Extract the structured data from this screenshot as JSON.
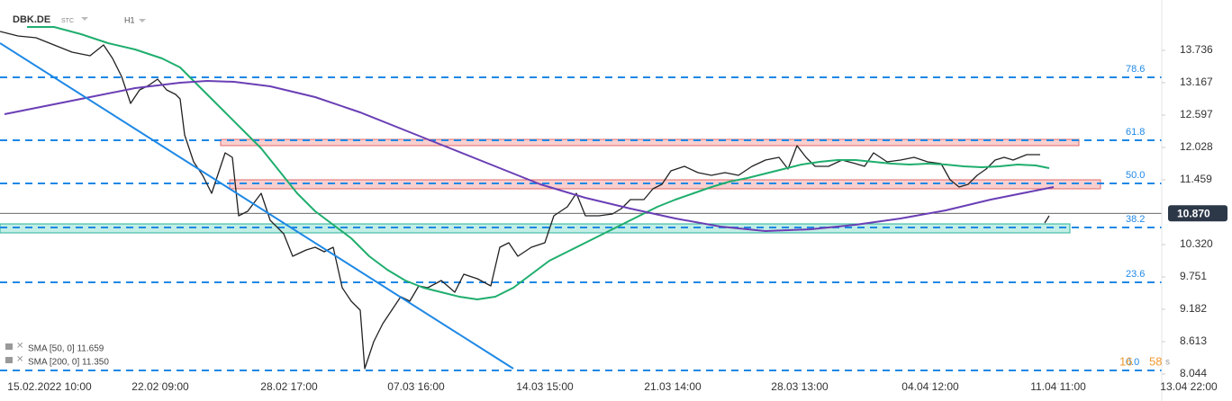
{
  "header": {
    "symbol": "DBK.DE",
    "market": "STC",
    "interval": "H1"
  },
  "legend_items": [
    {
      "label": "SMA [50, 0] 11.659"
    },
    {
      "label": "SMA [200, 0] 11.350"
    }
  ],
  "timer": {
    "minutes": "16",
    "seconds": "58",
    "unit": "s"
  },
  "chart_data": {
    "type": "line",
    "ylim": [
      7.854,
      14.621
    ],
    "yticks": [
      13.736,
      13.167,
      12.597,
      12.028,
      11.459,
      {
        "value": 10.32,
        "label": "10.320"
      },
      9.751,
      9.182,
      8.613,
      8.044
    ],
    "xlim": [
      0,
      273.6
    ],
    "xticks": [
      {
        "value": 11,
        "label": "15.02.2022 10:00"
      },
      {
        "value": 35.6,
        "label": "22.02 09:00"
      },
      {
        "value": 64.2,
        "label": "28.02 17:00"
      },
      {
        "value": 92.4,
        "label": "07.03 16:00"
      },
      {
        "value": 121,
        "label": "14.03 15:00"
      },
      {
        "value": 149.4,
        "label": "21.03 14:00"
      },
      {
        "value": 177.6,
        "label": "28.03 13:00"
      },
      {
        "value": 206.6,
        "label": "04.04 12:00"
      },
      {
        "value": 235,
        "label": "11.04 11:00"
      },
      {
        "value": 264,
        "label": "13.04 22:00"
      }
    ],
    "current_price": {
      "value": 10.87,
      "label": "10.870"
    },
    "series": [
      {
        "color": "#222222",
        "x": [
          0,
          4,
          8,
          12,
          16,
          20,
          23,
          25,
          27,
          29,
          31,
          33,
          35,
          37,
          39,
          40,
          41,
          43,
          45,
          47,
          49,
          50,
          51.6,
          53,
          55,
          58,
          60,
          63,
          65,
          68,
          70,
          72,
          74,
          76,
          78,
          80,
          81,
          83,
          85,
          87,
          89,
          91,
          93,
          95,
          98,
          101,
          103,
          106,
          109,
          111,
          113,
          115,
          118,
          121,
          123,
          126,
          128,
          130,
          133,
          136,
          138,
          140,
          143,
          145,
          147,
          149,
          152,
          155,
          158,
          161,
          164,
          167,
          170,
          173,
          175,
          177,
          179,
          181,
          184,
          187,
          190,
          192,
          194,
          197,
          200,
          203,
          206,
          209,
          211,
          213,
          215,
          217,
          219,
          221,
          223,
          225,
          228,
          231,
          231.5,
          232,
          233
        ],
        "values": [
          14.068,
          13.989,
          13.957,
          13.83,
          13.704,
          13.641,
          13.83,
          13.593,
          13.277,
          12.803,
          13.04,
          13.119,
          13.23,
          13.04,
          12.961,
          12.882,
          12.249,
          11.775,
          11.538,
          11.222,
          11.696,
          11.933,
          11.854,
          10.827,
          10.906,
          11.222,
          10.748,
          10.51,
          10.115,
          10.226,
          10.273,
          10.194,
          10.273,
          9.562,
          9.325,
          9.167,
          8.139,
          8.613,
          8.929,
          9.167,
          9.404,
          9.325,
          9.593,
          9.562,
          9.688,
          9.483,
          9.799,
          9.72,
          9.593,
          10.273,
          10.352,
          10.115,
          10.273,
          10.352,
          10.827,
          10.985,
          11.222,
          10.827,
          10.827,
          10.858,
          10.953,
          11.111,
          11.111,
          11.301,
          11.38,
          11.617,
          11.696,
          11.585,
          11.538,
          11.585,
          11.538,
          11.696,
          11.807,
          11.854,
          11.649,
          12.06,
          11.854,
          11.696,
          11.696,
          11.807,
          11.744,
          11.696,
          11.933,
          11.775,
          11.807,
          11.854,
          11.775,
          11.744,
          11.459,
          11.333,
          11.38,
          11.538,
          11.649,
          11.807,
          11.854,
          11.807,
          11.902,
          11.902,
          null,
          10.7,
          10.827
        ]
      },
      {
        "name": "SMA [50, 0]",
        "color": "#1fae6e",
        "x": [
          6,
          12,
          18,
          24,
          30,
          36,
          40,
          43,
          46,
          50,
          54,
          58,
          62,
          66,
          70,
          74,
          78,
          82,
          86,
          90,
          94,
          98,
          102,
          106,
          110,
          114,
          118,
          122,
          126,
          130,
          134,
          138,
          142,
          146,
          150,
          154,
          158,
          162,
          166,
          170,
          174,
          178,
          182,
          186,
          190,
          194,
          198,
          202,
          206,
          210,
          214,
          218,
          222,
          226,
          230,
          233
        ],
        "values": [
          14.147,
          14.147,
          14.02,
          13.862,
          13.751,
          13.593,
          13.435,
          13.198,
          12.961,
          12.645,
          12.329,
          12.012,
          11.617,
          11.222,
          10.906,
          10.668,
          10.431,
          10.115,
          9.878,
          9.688,
          9.562,
          9.483,
          9.404,
          9.356,
          9.404,
          9.562,
          9.799,
          10.036,
          10.194,
          10.352,
          10.51,
          10.668,
          10.827,
          10.985,
          11.111,
          11.222,
          11.333,
          11.427,
          11.491,
          11.57,
          11.649,
          11.728,
          11.775,
          11.807,
          11.807,
          11.775,
          11.744,
          11.728,
          11.744,
          11.728,
          11.696,
          11.68,
          11.696,
          11.728,
          11.712,
          11.665
        ]
      },
      {
        "name": "SMA [200, 0]",
        "color": "#6a3fb5",
        "x": [
          1,
          10,
          20,
          30,
          40,
          46,
          52,
          60,
          70,
          80,
          90,
          100,
          110,
          120,
          130,
          140,
          150,
          160,
          170,
          180,
          190,
          200,
          210,
          220,
          230,
          234
        ],
        "values": [
          12.613,
          12.755,
          12.914,
          13.072,
          13.166,
          13.198,
          13.182,
          13.103,
          12.914,
          12.645,
          12.329,
          12.012,
          11.696,
          11.38,
          11.143,
          10.953,
          10.779,
          10.637,
          10.558,
          10.589,
          10.668,
          10.779,
          10.921,
          11.111,
          11.269,
          11.333
        ]
      },
      {
        "color": "#1e88e5",
        "x": [
          0,
          114
        ],
        "values": [
          13.862,
          8.139
        ]
      }
    ],
    "zones": [
      {
        "x": [
          49,
          239.6
        ],
        "values": [
          12.17,
          12.06
        ],
        "color": "#f4a7a7"
      },
      {
        "x": [
          51,
          244.4
        ],
        "values": [
          11.459,
          11.301
        ],
        "color": "#f4a7a7"
      },
      {
        "x": [
          0,
          237.6
        ],
        "values": [
          10.684,
          10.526
        ],
        "color": "#8fe0cf"
      }
    ],
    "fib_levels": [
      {
        "label": "78.6",
        "value": 13.262
      },
      {
        "label": "61.8",
        "value": 12.155
      },
      {
        "label": "50.0",
        "value": 11.396
      },
      {
        "label": "38.2",
        "value": 10.621
      },
      {
        "label": "23.6",
        "value": 9.657
      },
      {
        "label": "0.0",
        "value": 8.107
      }
    ],
    "fib_color": "#1e88e5"
  }
}
